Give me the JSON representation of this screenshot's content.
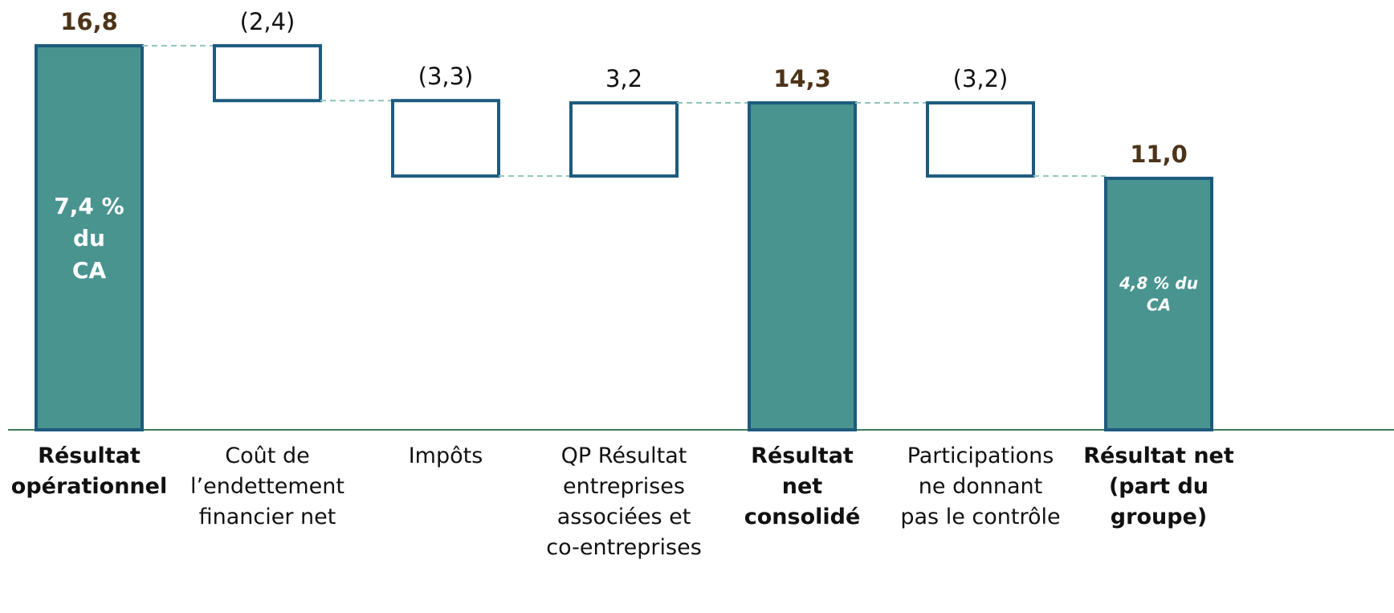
{
  "chart_data": {
    "type": "waterfall",
    "categories": [
      "Résultat\nopérationnel",
      "Coût de\nl’endettement\nfinancier net",
      "Impôts",
      "QP Résultat\nentreprises\nassociées et\nco-entreprises",
      "Résultat\nnet\nconsolidé",
      "Participations\nne donnant\npas le contrôle",
      "Résultat net\n(part du\ngroupe)"
    ],
    "measure": [
      "total",
      "relative",
      "relative",
      "relative",
      "total",
      "relative",
      "total"
    ],
    "values": [
      16.8,
      -2.4,
      -3.3,
      3.2,
      14.3,
      -3.2,
      11.0
    ],
    "value_labels": [
      "16,8",
      "(2,4)",
      "(3,3)",
      "3,2",
      "14,3",
      "(3,2)",
      "11,0"
    ],
    "annotations": [
      "7,4 %\ndu\nCA",
      "4,8 % du\nCA"
    ],
    "colors": {
      "total": "#4a9490",
      "relative": "#ffffff",
      "border": "#1d5b7e",
      "connector": "#8fc6bb",
      "baseline": "#3f7d5a"
    },
    "ylim": [
      0,
      18.8
    ]
  }
}
